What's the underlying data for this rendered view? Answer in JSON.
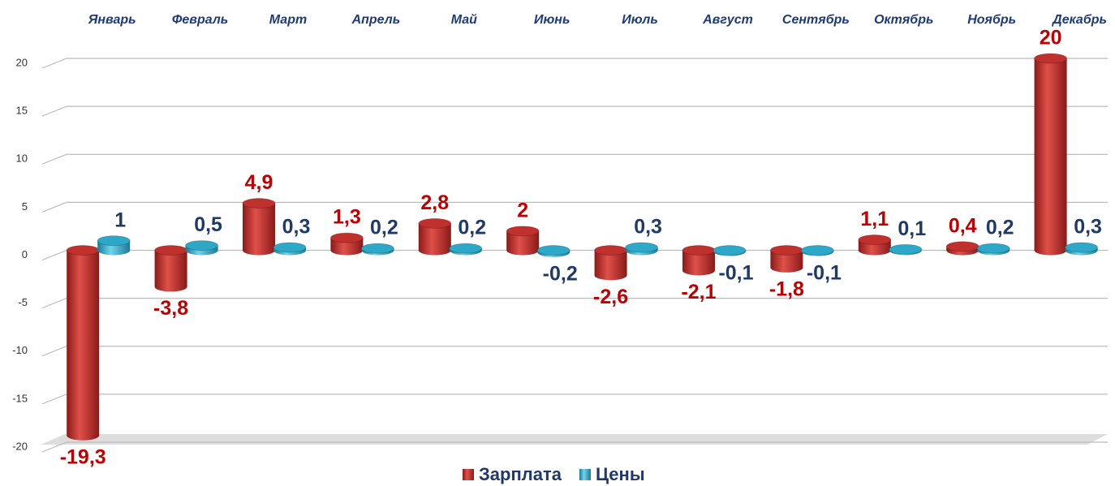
{
  "chart_data": {
    "type": "bar",
    "categories": [
      "Январь",
      "Февраль",
      "Март",
      "Апрель",
      "Май",
      "Июнь",
      "Июль",
      "Август",
      "Сентябрь",
      "Октябрь",
      "Ноябрь",
      "Декабрь"
    ],
    "series": [
      {
        "name": "Зарплата",
        "color": "#c0302c",
        "label_color": "#c00000",
        "values": [
          -19.3,
          -3.8,
          4.9,
          1.3,
          2.8,
          2,
          -2.6,
          -2.1,
          -1.8,
          1.1,
          0.4,
          20
        ],
        "value_labels": [
          "-19,3",
          "-3,8",
          "4,9",
          "1,3",
          "2,8",
          "2",
          "-2,6",
          "-2,1",
          "-1,8",
          "1,1",
          "0,4",
          "20"
        ]
      },
      {
        "name": "Цены",
        "color": "#2ea8c8",
        "label_color": "#1f3a6a",
        "values": [
          1,
          0.5,
          0.3,
          0.2,
          0.2,
          -0.2,
          0.3,
          -0.1,
          -0.1,
          0.1,
          0.2,
          0.3
        ],
        "value_labels": [
          "1",
          "0,5",
          "0,3",
          "0,2",
          "0,2",
          "-0,2",
          "0,3",
          "-0,1",
          "-0,1",
          "0,1",
          "0,2",
          "0,3"
        ]
      }
    ],
    "ylim": [
      -20,
      20
    ],
    "yticks": [
      -20,
      -15,
      -10,
      -5,
      0,
      5,
      10,
      15,
      20
    ],
    "grid": true,
    "legend": "bottom"
  }
}
